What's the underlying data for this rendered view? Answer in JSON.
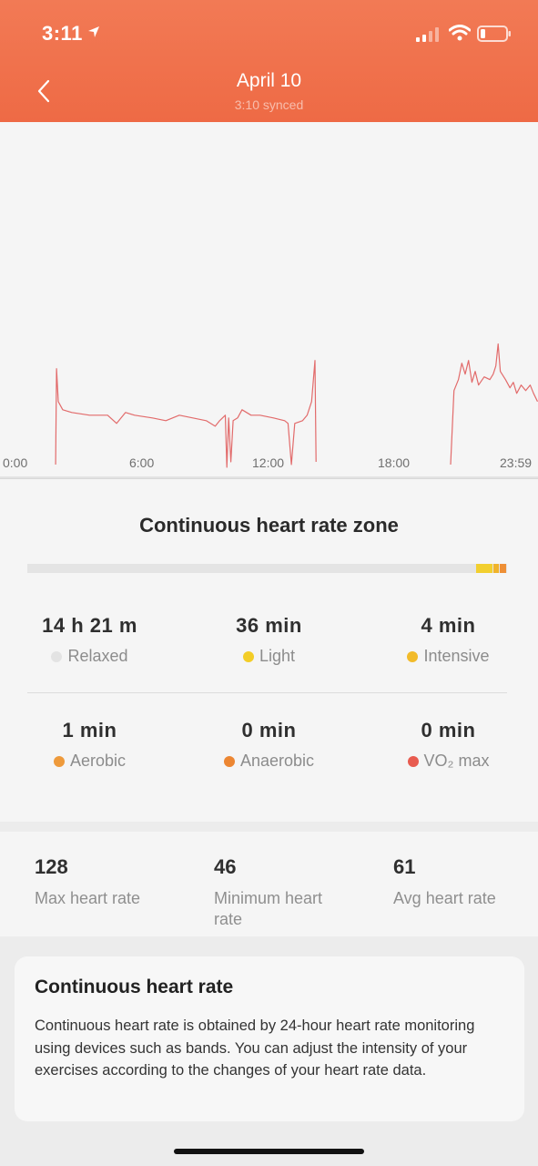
{
  "status_bar": {
    "time": "3:11"
  },
  "header": {
    "title": "April 10",
    "subtitle": "3:10 synced"
  },
  "chart_data": {
    "type": "line",
    "x_ticks": [
      "0:00",
      "6:00",
      "12:00",
      "18:00",
      "23:59"
    ],
    "series": [
      {
        "color": "#e26b6b",
        "segments": [
          [
            [
              2.48,
              35
            ],
            [
              2.52,
              70
            ],
            [
              2.6,
              58
            ],
            [
              2.8,
              55
            ],
            [
              3.2,
              54
            ],
            [
              4,
              53
            ],
            [
              4.8,
              53
            ],
            [
              5.2,
              50
            ],
            [
              5.6,
              54
            ],
            [
              6,
              53
            ],
            [
              6.8,
              52
            ],
            [
              7.4,
              51
            ],
            [
              8,
              53
            ],
            [
              8.6,
              52
            ],
            [
              9.2,
              51
            ],
            [
              9.6,
              49
            ],
            [
              9.8,
              51
            ],
            [
              10.05,
              53
            ],
            [
              10.12,
              34
            ],
            [
              10.2,
              52
            ],
            [
              10.3,
              36
            ],
            [
              10.4,
              51
            ],
            [
              10.6,
              52
            ],
            [
              10.8,
              55
            ],
            [
              11.2,
              53
            ],
            [
              11.6,
              53
            ],
            [
              12.2,
              52
            ],
            [
              12.7,
              51
            ],
            [
              12.85,
              50
            ],
            [
              13.0,
              35
            ],
            [
              13.15,
              50
            ],
            [
              13.5,
              51
            ],
            [
              13.7,
              53
            ],
            [
              13.9,
              58
            ],
            [
              14.05,
              73
            ],
            [
              14.1,
              36
            ]
          ],
          [
            [
              20.1,
              35
            ],
            [
              20.25,
              62
            ],
            [
              20.45,
              66
            ],
            [
              20.6,
              72
            ],
            [
              20.75,
              68
            ],
            [
              20.9,
              73
            ],
            [
              21.05,
              65
            ],
            [
              21.2,
              69
            ],
            [
              21.35,
              64
            ],
            [
              21.6,
              67
            ],
            [
              21.85,
              66
            ],
            [
              22.0,
              68
            ],
            [
              22.12,
              71
            ],
            [
              22.22,
              79
            ],
            [
              22.32,
              69
            ],
            [
              22.55,
              66
            ],
            [
              22.75,
              63
            ],
            [
              22.9,
              65
            ],
            [
              23.05,
              61
            ],
            [
              23.25,
              64
            ],
            [
              23.45,
              62
            ],
            [
              23.65,
              64
            ],
            [
              23.8,
              61
            ],
            [
              23.98,
              58
            ]
          ]
        ]
      }
    ],
    "ylim": [
      30,
      160
    ],
    "xlim": [
      0,
      24
    ]
  },
  "zone": {
    "title": "Continuous heart rate zone",
    "bar_segments": [
      {
        "name": "light",
        "fraction": 0.036,
        "color": "#f2cf2e"
      },
      {
        "name": "intensive",
        "fraction": 0.013,
        "color": "#f0b32a"
      },
      {
        "name": "aerobic",
        "fraction": 0.015,
        "color": "#ee8f36"
      }
    ],
    "stats": [
      {
        "value": "14 h 21 m",
        "label": "Relaxed",
        "color": "#e3e3e3"
      },
      {
        "value": "36 min",
        "label": "Light",
        "color": "#f3cd27"
      },
      {
        "value": "4 min",
        "label": "Intensive",
        "color": "#f2bb2a"
      },
      {
        "value": "1 min",
        "label": "Aerobic",
        "color": "#ee9a3b"
      },
      {
        "value": "0 min",
        "label": "Anaerobic",
        "color": "#ec8632"
      },
      {
        "value": "0 min",
        "label": "VO₂ max",
        "color": "#e85b4f"
      }
    ]
  },
  "summary": [
    {
      "value": "128",
      "label": "Max heart rate"
    },
    {
      "value": "46",
      "label": "Minimum heart rate"
    },
    {
      "value": "61",
      "label": "Avg heart rate"
    }
  ],
  "info": {
    "title": "Continuous heart rate",
    "body": "Continuous heart rate is obtained by 24-hour heart rate monitoring using devices such as bands. You can adjust the intensity of your exercises according to the changes of your heart rate data."
  }
}
